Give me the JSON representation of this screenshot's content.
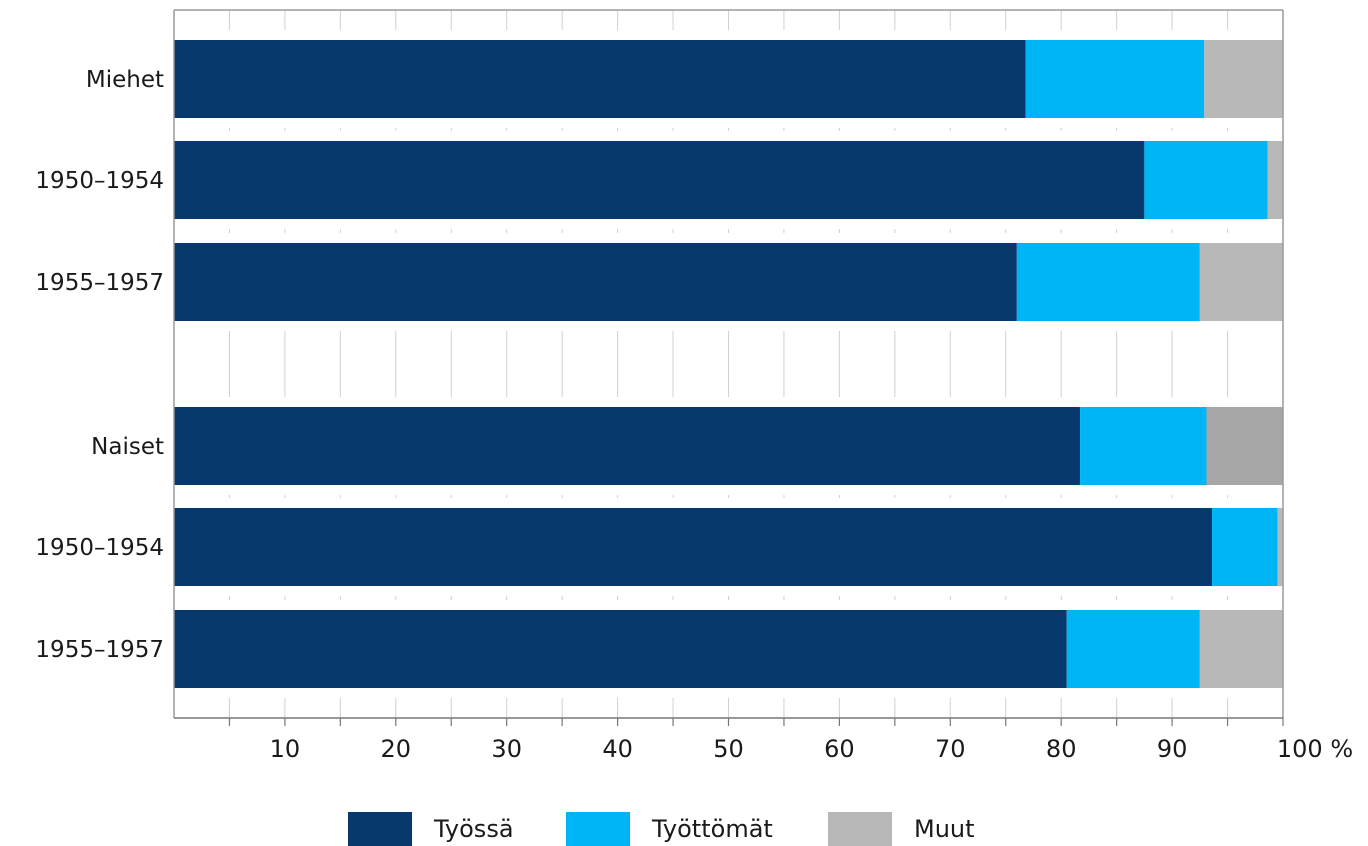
{
  "chart_data": {
    "type": "bar",
    "orientation": "horizontal",
    "stacked": true,
    "groups": [
      {
        "categories": [
          "Miehet",
          "1950–1954",
          "1955–1957"
        ]
      },
      {
        "categories": [
          "Naiset",
          "1950–1954",
          "1955–1957"
        ]
      }
    ],
    "categories": [
      "Miehet",
      "1950–1954",
      "1955–1957",
      "Naiset",
      "1950–1954",
      "1955–1957"
    ],
    "series": [
      {
        "name": "Työssä",
        "color": "#08396e",
        "values": [
          76.8,
          87.5,
          76.0,
          81.7,
          93.6,
          80.5
        ]
      },
      {
        "name": "Työttömät",
        "color": "#00b5f6",
        "values": [
          16.1,
          11.1,
          16.5,
          11.4,
          5.9,
          12.0
        ]
      },
      {
        "name": "Muut",
        "color": "#b8b8b8",
        "values": [
          7.1,
          1.4,
          7.5,
          6.9,
          0.5,
          7.5
        ]
      }
    ],
    "xlim": [
      0,
      100
    ],
    "xticks": [
      "10",
      "20",
      "30",
      "40",
      "50",
      "60",
      "70",
      "80",
      "90",
      "100 %"
    ],
    "grid": true,
    "legend_position": "bottom"
  }
}
